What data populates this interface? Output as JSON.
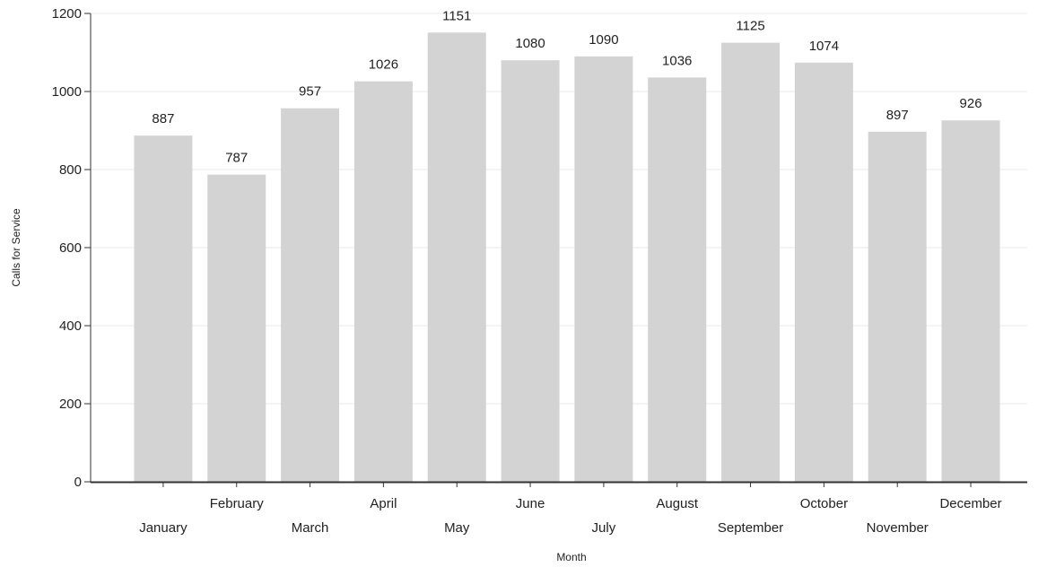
{
  "chart_data": {
    "type": "bar",
    "title": "",
    "xlabel": "Month",
    "ylabel": "Calls for Service",
    "categories": [
      "January",
      "February",
      "March",
      "April",
      "May",
      "June",
      "July",
      "August",
      "September",
      "October",
      "November",
      "December"
    ],
    "values": [
      887,
      787,
      957,
      1026,
      1151,
      1080,
      1090,
      1036,
      1125,
      1074,
      897,
      926
    ],
    "ylim": [
      0,
      1200
    ],
    "yticks": [
      0,
      200,
      400,
      600,
      800,
      1000,
      1200
    ],
    "grid": true,
    "legend": "none",
    "data_labels": true,
    "category_labels_staggered": true
  },
  "colors": {
    "bar": "#d3d3d3",
    "grid": "#e8e8e8",
    "axis": "#333333",
    "text": "#222222"
  }
}
